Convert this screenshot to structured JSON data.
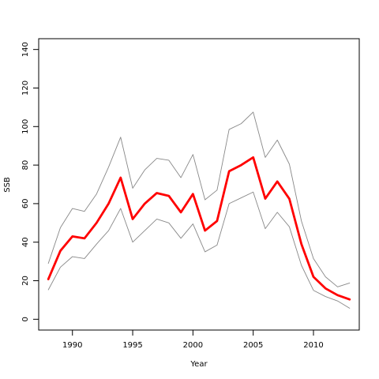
{
  "chart_data": {
    "type": "line",
    "title": "",
    "xlabel": "Year",
    "ylabel": "SSB",
    "xlim": [
      1987.2,
      2013.8
    ],
    "ylim": [
      -5.6,
      145.6
    ],
    "x_ticks": [
      1990,
      1995,
      2000,
      2005,
      2010
    ],
    "y_ticks": [
      0,
      20,
      40,
      60,
      80,
      100,
      120,
      140
    ],
    "x_tick_labels": [
      "1990",
      "1995",
      "2000",
      "2005",
      "2010"
    ],
    "y_tick_labels": [
      "0",
      "20",
      "40",
      "60",
      "80",
      "100",
      "120",
      "140"
    ],
    "grid": false,
    "legend": "none",
    "x": [
      1988,
      1989,
      1990,
      1991,
      1992,
      1993,
      1994,
      1995,
      1996,
      1997,
      1998,
      1999,
      2000,
      2001,
      2002,
      2003,
      2004,
      2005,
      2006,
      2007,
      2008,
      2009,
      2010,
      2011,
      2012,
      2013
    ],
    "series": [
      {
        "role": "estimate",
        "color": "#ff0000",
        "values": [
          20.8,
          35.5,
          43,
          42,
          50,
          60,
          73.5,
          52,
          60,
          65.5,
          64,
          55.5,
          65,
          46,
          51,
          76.8,
          80,
          84,
          62.6,
          71.5,
          62.5,
          39,
          22,
          16,
          12.5,
          10.3
        ]
      },
      {
        "role": "upper bound",
        "color": "#888888",
        "values": [
          29,
          47.5,
          57.5,
          56,
          65,
          79,
          94.5,
          68,
          77.5,
          83.5,
          82.5,
          73.5,
          85.5,
          62,
          67,
          98.5,
          101.5,
          107.5,
          84,
          93,
          80.5,
          51,
          31.5,
          22,
          16.8,
          18.8
        ]
      },
      {
        "role": "lower bound",
        "color": "#888888",
        "values": [
          15.3,
          27,
          32.5,
          31.5,
          39,
          46,
          57.5,
          40,
          46,
          52,
          50,
          42,
          49.5,
          35,
          38.5,
          60,
          63,
          66,
          47,
          55.5,
          48,
          28,
          15,
          11.8,
          9.5,
          5.7
        ]
      }
    ]
  }
}
